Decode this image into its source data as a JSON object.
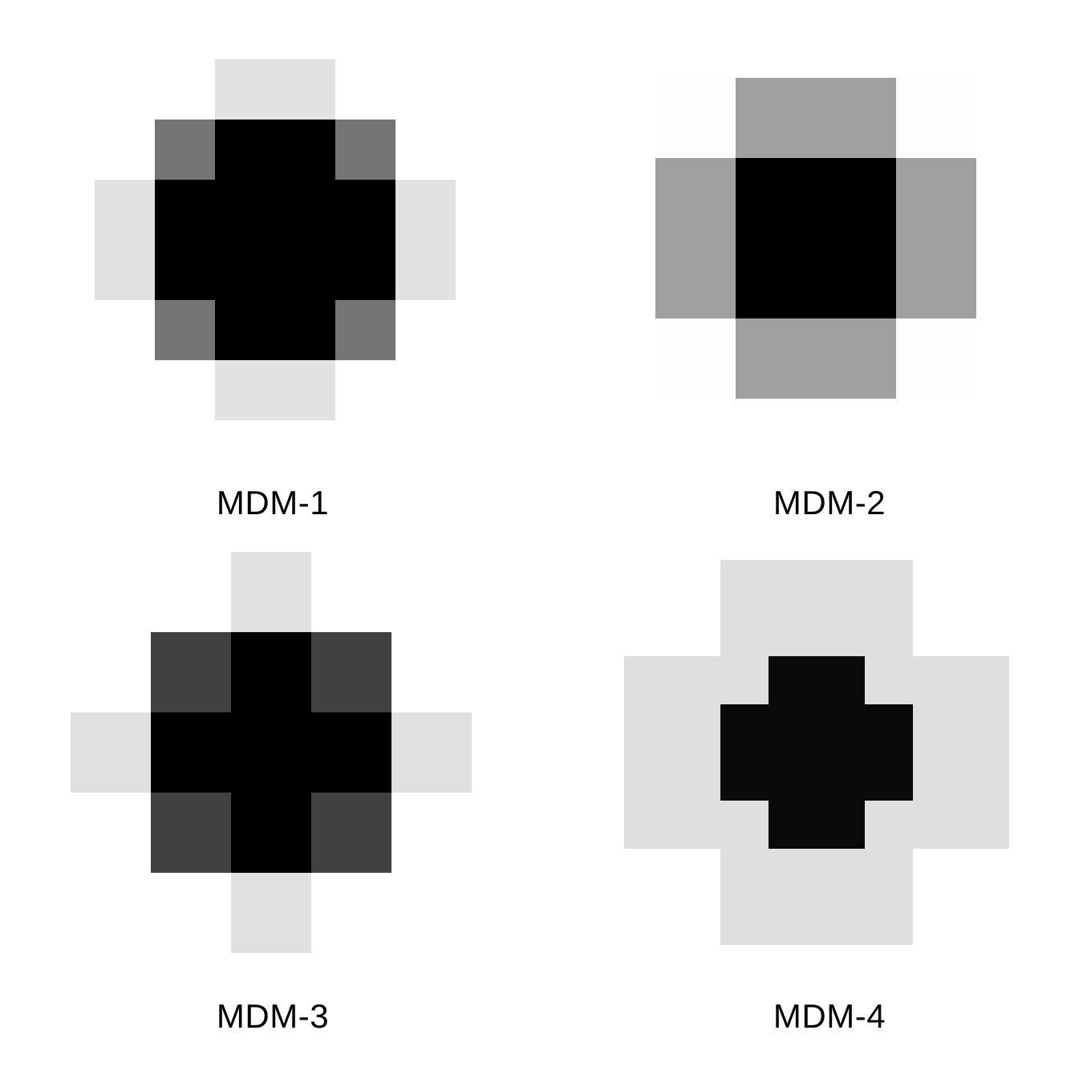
{
  "colors": {
    "background": "#ffffff",
    "text": "#000000"
  },
  "patterns": [
    {
      "id": "mdm-1",
      "label": "MDM-1",
      "grid_size": 6,
      "shades": [
        [
          "#ffffff",
          "#ffffff",
          "#e2e2e2",
          "#e2e2e2",
          "#ffffff",
          "#ffffff"
        ],
        [
          "#ffffff",
          "#757575",
          "#000000",
          "#000000",
          "#757575",
          "#ffffff"
        ],
        [
          "#e2e2e2",
          "#000000",
          "#000000",
          "#000000",
          "#000000",
          "#e2e2e2"
        ],
        [
          "#e2e2e2",
          "#000000",
          "#000000",
          "#000000",
          "#000000",
          "#e2e2e2"
        ],
        [
          "#ffffff",
          "#757575",
          "#000000",
          "#000000",
          "#757575",
          "#ffffff"
        ],
        [
          "#ffffff",
          "#ffffff",
          "#e2e2e2",
          "#e2e2e2",
          "#ffffff",
          "#ffffff"
        ]
      ]
    },
    {
      "id": "mdm-2",
      "label": "MDM-2",
      "grid_size": 4,
      "shades": [
        [
          "#fdfdfd",
          "#a0a0a0",
          "#a0a0a0",
          "#fdfdfd"
        ],
        [
          "#a0a0a0",
          "#000000",
          "#000000",
          "#a0a0a0"
        ],
        [
          "#a0a0a0",
          "#000000",
          "#000000",
          "#a0a0a0"
        ],
        [
          "#fdfdfd",
          "#a0a0a0",
          "#a0a0a0",
          "#fdfdfd"
        ]
      ]
    },
    {
      "id": "mdm-3",
      "label": "MDM-3",
      "grid_size": 5,
      "shades": [
        [
          "#ffffff",
          "#ffffff",
          "#e0e0e0",
          "#ffffff",
          "#ffffff"
        ],
        [
          "#ffffff",
          "#414141",
          "#000000",
          "#414141",
          "#ffffff"
        ],
        [
          "#e0e0e0",
          "#000000",
          "#000000",
          "#000000",
          "#e0e0e0"
        ],
        [
          "#ffffff",
          "#414141",
          "#000000",
          "#414141",
          "#ffffff"
        ],
        [
          "#ffffff",
          "#ffffff",
          "#e0e0e0",
          "#ffffff",
          "#ffffff"
        ]
      ]
    },
    {
      "id": "mdm-4",
      "label": "MDM-4",
      "grid_size": 8,
      "shades": [
        [
          "#ffffff",
          "#ffffff",
          "#dfdfdf",
          "#dfdfdf",
          "#dfdfdf",
          "#dfdfdf",
          "#ffffff",
          "#ffffff"
        ],
        [
          "#ffffff",
          "#ffffff",
          "#dfdfdf",
          "#dfdfdf",
          "#dfdfdf",
          "#dfdfdf",
          "#ffffff",
          "#ffffff"
        ],
        [
          "#dfdfdf",
          "#dfdfdf",
          "#dfdfdf",
          "#0a0a0a",
          "#0a0a0a",
          "#dfdfdf",
          "#dfdfdf",
          "#dfdfdf"
        ],
        [
          "#dfdfdf",
          "#dfdfdf",
          "#0a0a0a",
          "#0a0a0a",
          "#0a0a0a",
          "#0a0a0a",
          "#dfdfdf",
          "#dfdfdf"
        ],
        [
          "#dfdfdf",
          "#dfdfdf",
          "#0a0a0a",
          "#0a0a0a",
          "#0a0a0a",
          "#0a0a0a",
          "#dfdfdf",
          "#dfdfdf"
        ],
        [
          "#dfdfdf",
          "#dfdfdf",
          "#dfdfdf",
          "#0a0a0a",
          "#0a0a0a",
          "#dfdfdf",
          "#dfdfdf",
          "#dfdfdf"
        ],
        [
          "#ffffff",
          "#ffffff",
          "#dfdfdf",
          "#dfdfdf",
          "#dfdfdf",
          "#dfdfdf",
          "#ffffff",
          "#ffffff"
        ],
        [
          "#ffffff",
          "#ffffff",
          "#dfdfdf",
          "#dfdfdf",
          "#dfdfdf",
          "#dfdfdf",
          "#ffffff",
          "#ffffff"
        ]
      ]
    }
  ]
}
